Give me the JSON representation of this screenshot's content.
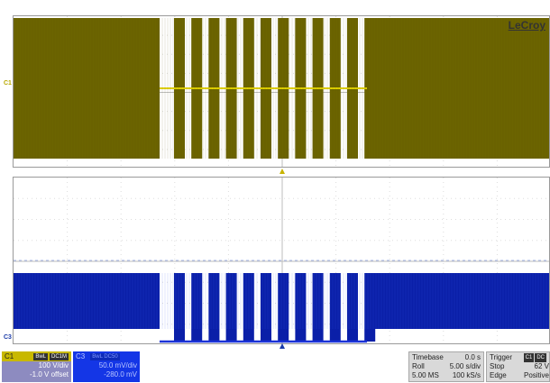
{
  "brand": "LeCroy",
  "channels": {
    "c1_marker": "C1",
    "c3_marker": "C3"
  },
  "waveform": {
    "ch1_color": "#6b6400",
    "ch1_trace_color": "#e0d000",
    "ch3_color": "#0a1fa8",
    "ch3_trace_color": "#1b33d8",
    "pulse_count": 12
  },
  "c1_descriptor": {
    "label": "C1",
    "tag1": "BwL",
    "tag2": "DC1M",
    "vdiv": "100 V/div",
    "offset": "-1.0 V offset"
  },
  "c3_descriptor": {
    "label": "C3",
    "tag1": "BwL DC50",
    "vdiv": "50.0 mV/div",
    "offset": "-280.0 mV"
  },
  "timebase": {
    "label": "Timebase",
    "delay": "0.0 s",
    "mode": "Roll",
    "tdiv": "5.00 s/div",
    "samples": "5.00 MS",
    "rate": "100 kS/s"
  },
  "trigger": {
    "label": "Trigger",
    "tag1": "C1",
    "tag2": "DC",
    "status": "Stop",
    "level": "62 V",
    "type": "Edge",
    "slope": "Positive"
  }
}
